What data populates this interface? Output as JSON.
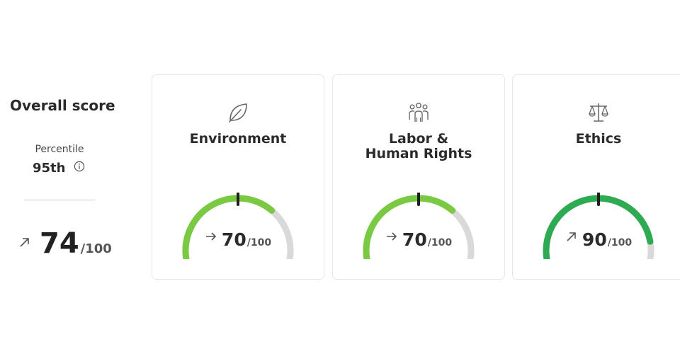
{
  "overall": {
    "title": "Overall score",
    "percentile_label": "Percentile",
    "percentile_value": "95th",
    "score": "74",
    "denominator": "/100",
    "trend_icon": "arrow-up-right-icon",
    "info_icon": "info-icon"
  },
  "categories": [
    {
      "title": "Environment",
      "icon": "leaf-icon",
      "score": "70",
      "denominator": "/100",
      "trend_icon": "arrow-right-icon",
      "fraction": 0.7,
      "color": "#7ac943",
      "marker": 0.5
    },
    {
      "title": "Labor & Human Rights",
      "icon": "people-group-icon",
      "score": "70",
      "denominator": "/100",
      "trend_icon": "arrow-right-icon",
      "fraction": 0.7,
      "color": "#7ac943",
      "marker": 0.5
    },
    {
      "title": "Ethics",
      "icon": "scales-icon",
      "score": "90",
      "denominator": "/100",
      "trend_icon": "arrow-up-right-icon",
      "fraction": 0.9,
      "color": "#2eaa52",
      "marker": 0.5
    }
  ],
  "colors": {
    "track": "#d9d9d9",
    "marker": "#1f1f1f"
  }
}
